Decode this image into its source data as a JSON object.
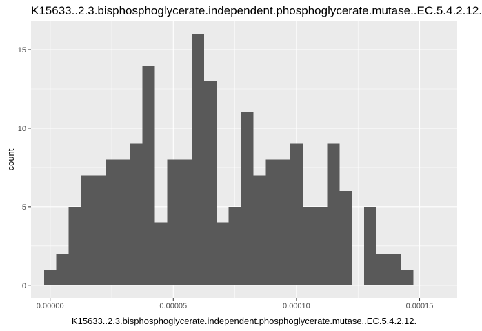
{
  "chart_data": {
    "type": "bar",
    "title": "K15633..2.3.bisphosphoglycerate.independent.phosphoglycerate.mutase..EC.5.4.2.12.",
    "xlabel": "K15633..2.3.bisphosphoglycerate.independent.phosphoglycerate.mutase..EC.5.4.2.12.",
    "ylabel": "count",
    "bin_width": 5e-06,
    "bin_start": -2.5e-06,
    "values": [
      1,
      2,
      5,
      7,
      7,
      8,
      8,
      9,
      14,
      4,
      8,
      8,
      16,
      13,
      4,
      5,
      11,
      7,
      8,
      8,
      9,
      5,
      5,
      9,
      6,
      0,
      5,
      2,
      2,
      1
    ],
    "xlim": [
      -7.75e-06,
      0.00016525
    ],
    "ylim": [
      -0.8,
      16.8
    ],
    "x_ticks": [
      0,
      5e-05,
      0.0001,
      0.00015
    ],
    "x_tick_labels": [
      "0.00000",
      "0.00005",
      "0.00010",
      "0.00015"
    ],
    "y_ticks": [
      0,
      5,
      10,
      15
    ],
    "y_tick_labels": [
      "0",
      "5",
      "10",
      "15"
    ],
    "colors": {
      "panel": "#ebebeb",
      "grid": "#ffffff",
      "bar": "#595959",
      "tick_text": "#4d4d4d"
    }
  }
}
